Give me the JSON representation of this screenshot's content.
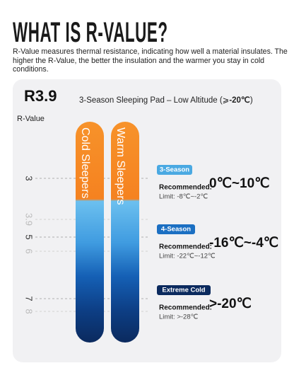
{
  "header": {
    "title": "WHAT IS R-VALUE?",
    "description": "R-Value measures thermal resistance, indicating how well a material insulates. The higher the R-Value, the better the insulation and the warmer you stay in cold conditions."
  },
  "panel": {
    "rating": "R3.9",
    "subtitle": "3-Season Sleeping Pad – Low Altitude (⩾",
    "subtitle_bold": "-20℃",
    "subtitle_end": ")",
    "axis_label": "R-Value",
    "scale": [
      "3",
      "3.9",
      "5",
      "6",
      "7",
      "8"
    ],
    "bars": [
      "Cold Sleepers",
      "Warm Sleepers"
    ],
    "seasons": [
      {
        "badge": "3-Season",
        "recommended_label": "Recommended:",
        "recommended": "0℃~10℃",
        "limit": "Limit: -8℃~-2℃"
      },
      {
        "badge": "4-Season",
        "recommended_label": "Recommended:",
        "recommended": "-16℃~-4℃",
        "limit": "Limit: -22℃~-12℃"
      },
      {
        "badge": "Extreme Cold",
        "recommended_label": "Recommended:",
        "recommended": ">-20℃",
        "limit": "Limit: >-28℃"
      }
    ]
  }
}
